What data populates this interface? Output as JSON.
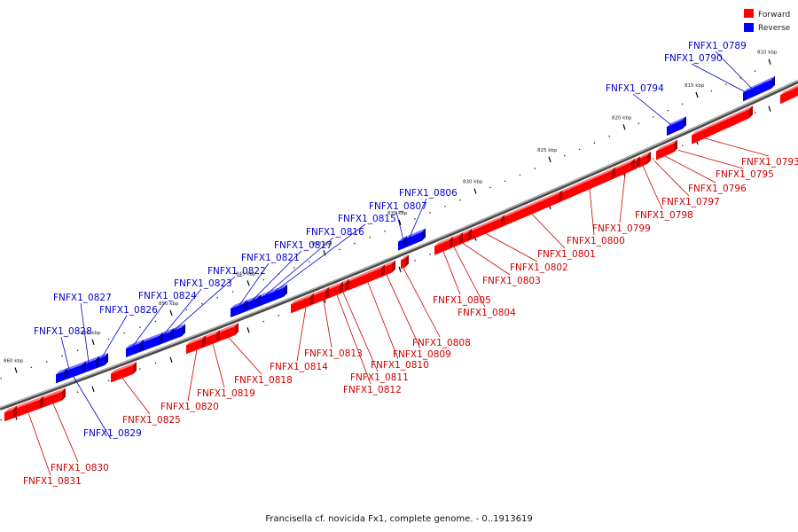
{
  "caption": "Francisella cf. novicida Fx1, complete genome. - 0..1913619",
  "legend": [
    {
      "label": "Forward",
      "color": "#ff0000"
    },
    {
      "label": "Reverse",
      "color": "#0000ff"
    }
  ],
  "colors": {
    "forward": "#ff0000",
    "forward_top": "#ff7a7a",
    "forward_side": "#b00000",
    "reverse": "#0000ff",
    "reverse_top": "#7a7aff",
    "reverse_side": "#0000a8",
    "forward_line": "#cc0000",
    "reverse_line": "#0000cc"
  },
  "ticks": [
    {
      "label": "810 kbp",
      "kbp": 810
    },
    {
      "label": "815 kbp",
      "kbp": 815
    },
    {
      "label": "820 kbp",
      "kbp": 820
    },
    {
      "label": "825 kbp",
      "kbp": 825
    },
    {
      "label": "830 kbp",
      "kbp": 830
    },
    {
      "label": "835 kbp",
      "kbp": 835
    },
    {
      "label": "840 kbp",
      "kbp": 840
    },
    {
      "label": "845 kbp",
      "kbp": 845
    },
    {
      "label": "850 kbp",
      "kbp": 850
    },
    {
      "label": "855 kbp",
      "kbp": 855
    },
    {
      "label": "860 kbp",
      "kbp": 860
    }
  ],
  "forward_labels": [
    "FNFX1_0793",
    "FNFX1_0795",
    "FNFX1_0796",
    "FNFX1_0797",
    "FNFX1_0798",
    "FNFX1_0799",
    "FNFX1_0800",
    "FNFX1_0801",
    "FNFX1_0802",
    "FNFX1_0803",
    "FNFX1_0804",
    "FNFX1_0805",
    "FNFX1_0808",
    "FNFX1_0809",
    "FNFX1_0810",
    "FNFX1_0811",
    "FNFX1_0812",
    "FNFX1_0813",
    "FNFX1_0814",
    "FNFX1_0818",
    "FNFX1_0819",
    "FNFX1_0820",
    "FNFX1_0825",
    "FNFX1_0830",
    "FNFX1_0831"
  ],
  "reverse_labels": [
    "FNFX1_0789",
    "FNFX1_0790",
    "FNFX1_0794",
    "FNFX1_0806",
    "FNFX1_0807",
    "FNFX1_0815",
    "FNFX1_0816",
    "FNFX1_0817",
    "FNFX1_0821",
    "FNFX1_0822",
    "FNFX1_0823",
    "FNFX1_0824",
    "FNFX1_0826",
    "FNFX1_0827",
    "FNFX1_0828",
    "FNFX1_0829"
  ]
}
